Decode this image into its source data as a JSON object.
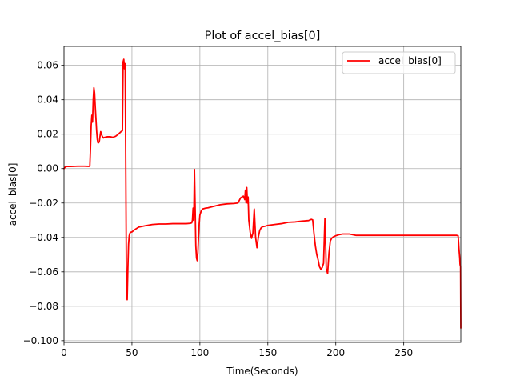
{
  "chart_data": {
    "type": "line",
    "title": "Plot of accel_bias[0]",
    "xlabel": "Time(Seconds)",
    "ylabel": "accel_bias[0]",
    "xlim": [
      0,
      292
    ],
    "ylim": [
      -0.101,
      0.071
    ],
    "xticks": [
      0,
      50,
      100,
      150,
      200,
      250
    ],
    "xtick_labels": [
      "0",
      "50",
      "100",
      "150",
      "200",
      "250"
    ],
    "yticks": [
      -0.1,
      -0.08,
      -0.06,
      -0.04,
      -0.02,
      0.0,
      0.02,
      0.04,
      0.06
    ],
    "ytick_labels": [
      "−0.100",
      "−0.08",
      "−0.06",
      "−0.04",
      "−0.02",
      "0.00",
      "0.02",
      "0.04",
      "0.06"
    ],
    "grid": true,
    "legend_position": "top-right",
    "series": [
      {
        "name": "accel_bias[0]",
        "color": "#ff0000",
        "x": [
          0,
          0.5,
          1,
          2,
          5,
          10,
          15,
          18,
          19,
          19.5,
          20,
          20.5,
          21,
          21.5,
          22,
          22.5,
          23,
          23.5,
          24,
          24.5,
          25,
          25.5,
          26,
          27,
          28,
          29,
          30,
          32,
          34,
          36,
          38,
          40,
          42,
          43,
          43.5,
          44,
          44.5,
          45,
          45.5,
          46,
          46.5,
          47,
          47.5,
          48,
          48.5,
          49,
          50,
          52,
          55,
          60,
          65,
          70,
          75,
          80,
          85,
          90,
          93,
          94,
          94.5,
          95,
          95.5,
          96,
          96.5,
          97,
          97.5,
          98,
          98.5,
          99,
          99.5,
          100,
          101,
          102,
          104,
          106,
          110,
          115,
          120,
          125,
          128,
          130,
          132,
          133,
          133.5,
          134,
          134.5,
          135,
          135.5,
          136,
          137,
          138,
          139,
          140,
          141,
          142,
          143,
          144,
          145,
          146,
          148,
          150,
          155,
          160,
          165,
          170,
          175,
          180,
          182,
          183,
          184,
          185,
          186,
          187,
          188,
          189,
          190,
          191,
          192,
          193,
          194,
          195,
          196,
          197,
          198,
          200,
          202,
          205,
          210,
          215,
          216,
          217,
          220,
          230,
          240,
          250,
          260,
          270,
          285,
          289,
          290,
          290.3,
          290.6,
          291,
          291.2,
          291.4,
          291.6,
          291.8,
          292
        ],
        "y": [
          0.0,
          0.0005,
          0.001,
          0.0012,
          0.0012,
          0.0014,
          0.0014,
          0.0013,
          0.0014,
          0.012,
          0.025,
          0.031,
          0.027,
          0.04,
          0.047,
          0.044,
          0.036,
          0.029,
          0.022,
          0.017,
          0.015,
          0.015,
          0.016,
          0.0215,
          0.019,
          0.0178,
          0.0182,
          0.0185,
          0.0185,
          0.0182,
          0.0188,
          0.02,
          0.0215,
          0.022,
          0.062,
          0.0635,
          0.058,
          0.061,
          -0.005,
          -0.075,
          -0.0762,
          -0.058,
          -0.044,
          -0.039,
          -0.0375,
          -0.037,
          -0.0368,
          -0.0355,
          -0.034,
          -0.0332,
          -0.0325,
          -0.0322,
          -0.0322,
          -0.032,
          -0.032,
          -0.032,
          -0.0318,
          -0.0315,
          -0.03,
          -0.023,
          -0.03,
          -0.0005,
          -0.022,
          -0.045,
          -0.052,
          -0.0535,
          -0.049,
          -0.04,
          -0.032,
          -0.027,
          -0.0245,
          -0.0235,
          -0.023,
          -0.0228,
          -0.022,
          -0.021,
          -0.0205,
          -0.0203,
          -0.02,
          -0.017,
          -0.016,
          -0.018,
          -0.0125,
          -0.02,
          -0.011,
          -0.02,
          -0.0165,
          -0.03,
          -0.037,
          -0.0405,
          -0.0375,
          -0.0235,
          -0.04,
          -0.046,
          -0.04,
          -0.036,
          -0.0345,
          -0.0338,
          -0.0335,
          -0.033,
          -0.0325,
          -0.032,
          -0.0312,
          -0.031,
          -0.0305,
          -0.0302,
          -0.0295,
          -0.0298,
          -0.038,
          -0.045,
          -0.05,
          -0.053,
          -0.057,
          -0.0585,
          -0.0575,
          -0.055,
          -0.029,
          -0.058,
          -0.061,
          -0.049,
          -0.042,
          -0.0405,
          -0.0398,
          -0.039,
          -0.0385,
          -0.038,
          -0.038,
          -0.0388,
          -0.0388,
          -0.0388,
          -0.0388,
          -0.0388,
          -0.0388,
          -0.0388,
          -0.0388,
          -0.0388,
          -0.0388,
          -0.0388,
          -0.039,
          -0.042,
          -0.046,
          -0.05,
          -0.052,
          -0.0555,
          -0.0565,
          -0.057,
          -0.0925
        ]
      }
    ]
  }
}
